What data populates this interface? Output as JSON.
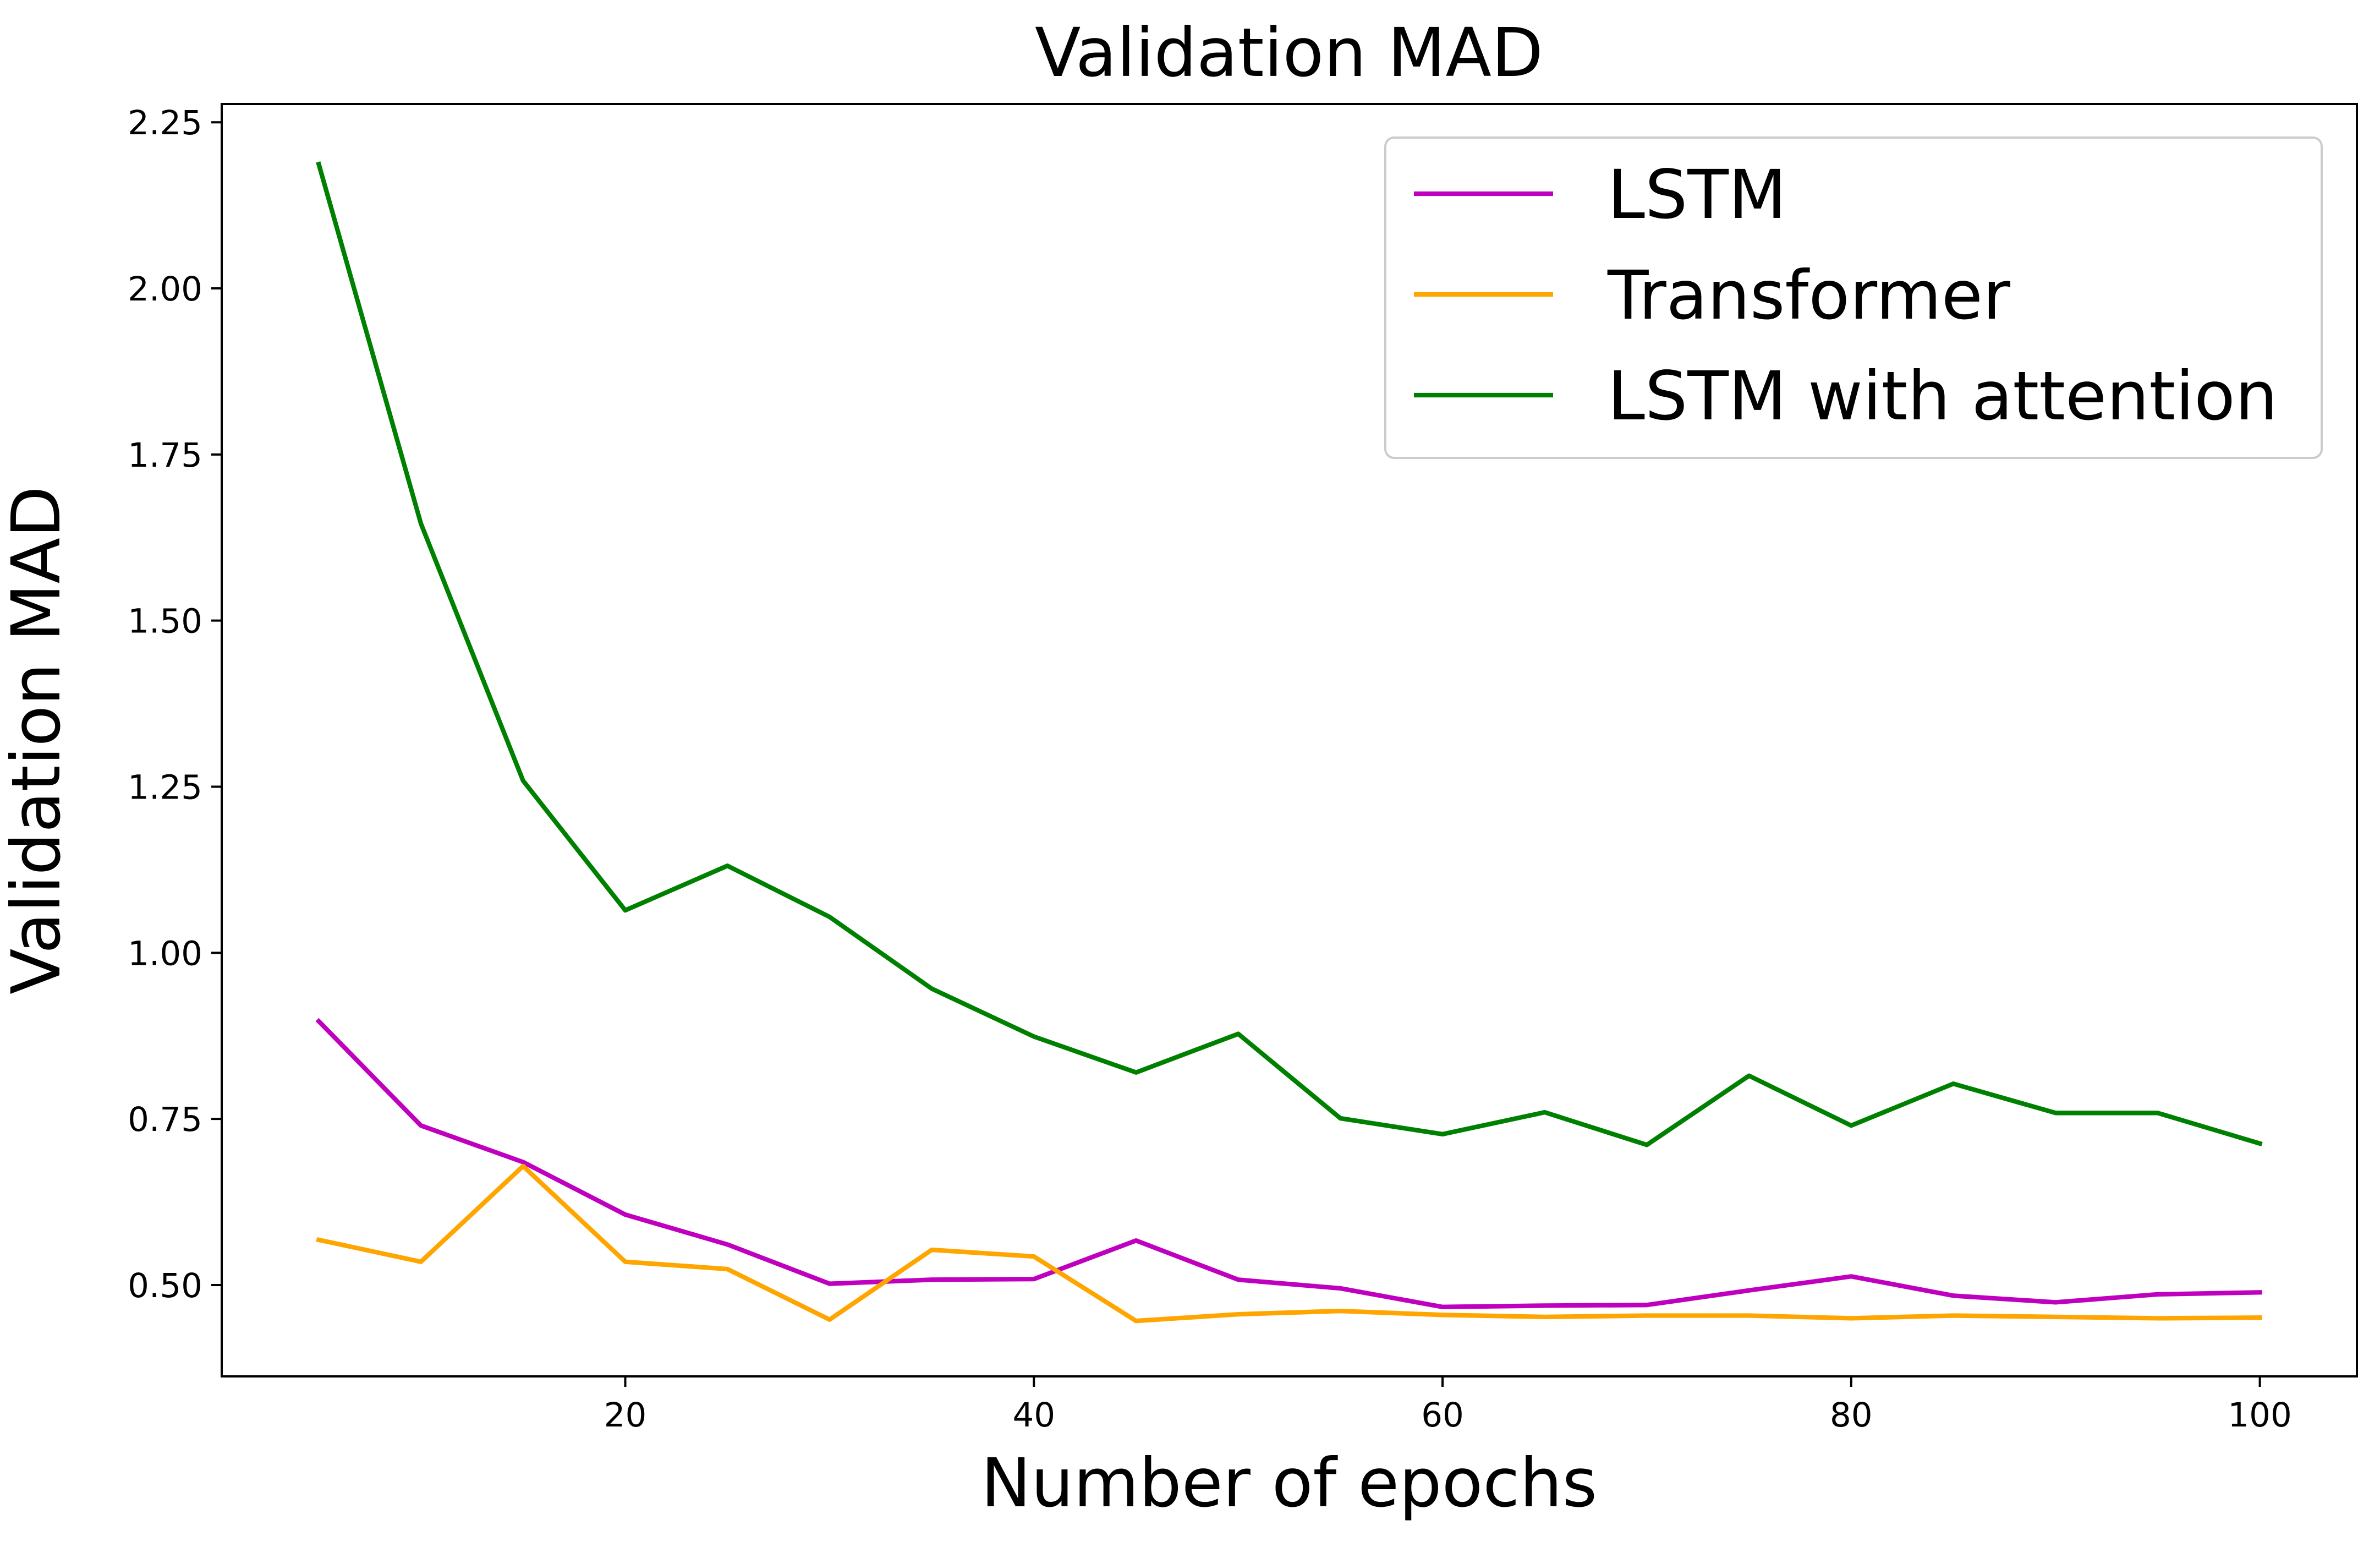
{
  "chart_data": {
    "type": "line",
    "title": "Validation MAD",
    "xlabel": "Number of epochs",
    "ylabel": "Validation MAD",
    "xlim": [
      0.25,
      104.75
    ],
    "ylim": [
      0.3625,
      2.2775
    ],
    "x_ticks": [
      20,
      40,
      60,
      80,
      100
    ],
    "y_ticks": [
      0.5,
      0.75,
      1.0,
      1.25,
      1.5,
      1.75,
      2.0,
      2.25
    ],
    "x_tick_labels": [
      "20",
      "40",
      "60",
      "80",
      "100"
    ],
    "y_tick_labels": [
      "0.50",
      "0.75",
      "1.00",
      "1.25",
      "1.50",
      "1.75",
      "2.00",
      "2.25"
    ],
    "grid": false,
    "legend_position": "top-right",
    "x": [
      5,
      10,
      15,
      20,
      25,
      30,
      35,
      40,
      45,
      50,
      55,
      60,
      65,
      70,
      75,
      80,
      85,
      90,
      95,
      100
    ],
    "series": [
      {
        "name": "LSTM",
        "color": "#bf00bf",
        "values": [
          0.897,
          0.74,
          0.685,
          0.606,
          0.561,
          0.502,
          0.508,
          0.509,
          0.567,
          0.508,
          0.495,
          0.467,
          0.469,
          0.47,
          0.492,
          0.513,
          0.484,
          0.474,
          0.486,
          0.489
        ]
      },
      {
        "name": "Transformer",
        "color": "#ffa500",
        "values": [
          0.568,
          0.535,
          0.679,
          0.535,
          0.524,
          0.448,
          0.553,
          0.543,
          0.446,
          0.456,
          0.461,
          0.455,
          0.452,
          0.454,
          0.454,
          0.45,
          0.454,
          0.452,
          0.45,
          0.451
        ]
      },
      {
        "name": "LSTM with attention",
        "color": "#008000",
        "values": [
          2.187,
          1.646,
          1.259,
          1.064,
          1.131,
          1.054,
          0.946,
          0.874,
          0.82,
          0.878,
          0.751,
          0.727,
          0.76,
          0.711,
          0.815,
          0.74,
          0.803,
          0.759,
          0.759,
          0.713
        ]
      }
    ]
  }
}
